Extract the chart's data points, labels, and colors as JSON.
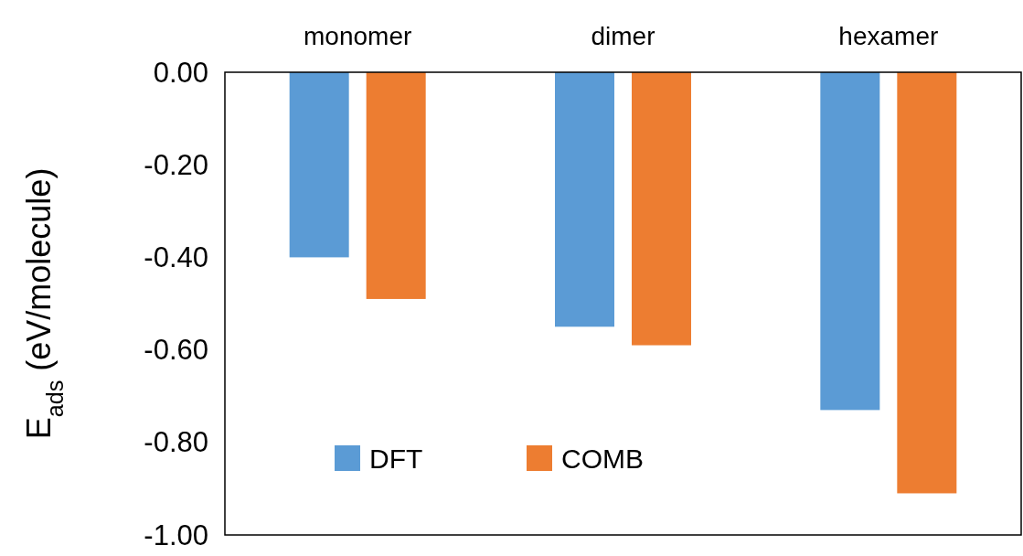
{
  "chart_data": {
    "type": "bar",
    "categories": [
      "monomer",
      "dimer",
      "hexamer"
    ],
    "series": [
      {
        "name": "DFT",
        "color": "#5b9bd5",
        "values": [
          -0.4,
          -0.55,
          -0.73
        ]
      },
      {
        "name": "COMB",
        "color": "#ed7d31",
        "values": [
          -0.49,
          -0.59,
          -0.91
        ]
      }
    ],
    "ylabel": "E$_{ads}$ (eV/molecule)",
    "ylim": [
      -1,
      0
    ],
    "yticks": [
      {
        "value": 0,
        "label": "0.00"
      },
      {
        "value": -0.2,
        "label": "-0.20"
      },
      {
        "value": -0.4,
        "label": "-0.40"
      },
      {
        "value": -0.6,
        "label": "-0.60"
      },
      {
        "value": -0.8,
        "label": "-0.80"
      },
      {
        "value": -1,
        "label": "-1.00"
      }
    ],
    "grid": false,
    "legend": "bottom"
  }
}
